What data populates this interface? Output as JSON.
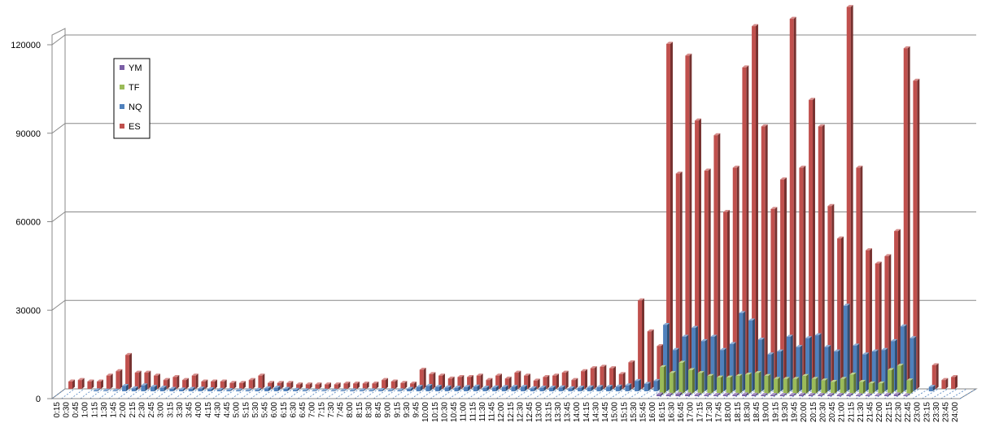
{
  "chart_data": {
    "type": "bar",
    "three_d": true,
    "grid": true,
    "legend_placement": "top-left",
    "title": "",
    "xlabel": "",
    "ylabel": "",
    "ylim": [
      0,
      120000
    ],
    "yticks": [
      "0",
      "30000",
      "60000",
      "90000",
      "120000"
    ],
    "categories": [
      "0:15",
      "0:30",
      "0:45",
      "1:00",
      "1:15",
      "1:30",
      "1:45",
      "2:00",
      "2:15",
      "2:30",
      "2:45",
      "3:00",
      "3:15",
      "3:30",
      "3:45",
      "4:00",
      "4:15",
      "4:30",
      "4:45",
      "5:00",
      "5:15",
      "5:30",
      "5:45",
      "6:00",
      "6:15",
      "6:30",
      "6:45",
      "7:00",
      "7:15",
      "7:30",
      "7:45",
      "8:00",
      "8:15",
      "8:30",
      "8:45",
      "9:00",
      "9:15",
      "9:30",
      "9:45",
      "10:00",
      "10:15",
      "10:30",
      "10:45",
      "11:00",
      "11:15",
      "11:30",
      "11:45",
      "12:00",
      "12:15",
      "12:30",
      "12:45",
      "13:00",
      "13:15",
      "13:30",
      "13:45",
      "14:00",
      "14:15",
      "14:30",
      "14:45",
      "15:00",
      "15:15",
      "15:30",
      "15:45",
      "16:00",
      "16:15",
      "16:30",
      "16:45",
      "17:00",
      "17:15",
      "17:30",
      "17:45",
      "18:00",
      "18:15",
      "18:30",
      "18:45",
      "19:00",
      "19:15",
      "19:30",
      "19:45",
      "20:00",
      "20:15",
      "20:30",
      "20:45",
      "21:00",
      "21:15",
      "21:30",
      "21:45",
      "22:00",
      "22:15",
      "22:30",
      "22:45",
      "23:00",
      "23:15",
      "23:30",
      "23:45",
      "24:00"
    ],
    "series": [
      {
        "name": "YM",
        "color": "#7b5fa6",
        "values": [
          0,
          0,
          0,
          0,
          0,
          0,
          0,
          0,
          0,
          0,
          0,
          0,
          0,
          0,
          0,
          0,
          0,
          0,
          0,
          0,
          0,
          0,
          0,
          0,
          0,
          0,
          0,
          0,
          0,
          0,
          0,
          0,
          0,
          0,
          0,
          0,
          0,
          0,
          0,
          0,
          0,
          0,
          0,
          0,
          0,
          0,
          0,
          0,
          0,
          0,
          0,
          0,
          0,
          0,
          0,
          0,
          0,
          0,
          0,
          0,
          0,
          0,
          0,
          600,
          500,
          700,
          600,
          500,
          400,
          400,
          500,
          500,
          600,
          500,
          400,
          400,
          400,
          400,
          500,
          400,
          400,
          400,
          400,
          400,
          300,
          300,
          300,
          500,
          600,
          300,
          0,
          0,
          0,
          0,
          0,
          0
        ]
      },
      {
        "name": "TF",
        "color": "#9bbb59",
        "values": [
          0,
          0,
          0,
          0,
          0,
          0,
          0,
          0,
          0,
          0,
          0,
          0,
          0,
          0,
          0,
          0,
          0,
          0,
          0,
          0,
          0,
          0,
          0,
          0,
          0,
          0,
          0,
          0,
          0,
          0,
          0,
          0,
          0,
          0,
          0,
          0,
          0,
          0,
          0,
          0,
          0,
          0,
          0,
          0,
          0,
          0,
          0,
          0,
          0,
          0,
          0,
          0,
          0,
          0,
          0,
          0,
          0,
          0,
          0,
          0,
          0,
          0,
          0,
          9000,
          7000,
          10500,
          8000,
          7000,
          6000,
          5500,
          5500,
          6000,
          6500,
          7000,
          6000,
          5000,
          5000,
          5000,
          6000,
          5000,
          4500,
          4000,
          5000,
          6500,
          4000,
          3500,
          3500,
          8000,
          9500,
          4500,
          0,
          0,
          0,
          0,
          0,
          0
        ]
      },
      {
        "name": "NQ",
        "color": "#4f81bd",
        "values": [
          0,
          0,
          0,
          300,
          200,
          200,
          1800,
          1000,
          2000,
          1500,
          1200,
          800,
          600,
          800,
          900,
          700,
          500,
          400,
          300,
          300,
          500,
          1000,
          1200,
          800,
          500,
          300,
          200,
          200,
          200,
          200,
          300,
          300,
          300,
          400,
          300,
          300,
          800,
          1500,
          1800,
          1500,
          1300,
          1200,
          1400,
          1600,
          1200,
          1300,
          1400,
          1500,
          1500,
          1000,
          1200,
          1200,
          1300,
          1000,
          1200,
          1300,
          1400,
          1500,
          1600,
          2000,
          3500,
          2500,
          3500,
          22500,
          14000,
          18500,
          21500,
          17000,
          18500,
          14000,
          16000,
          26500,
          24000,
          17500,
          12500,
          13500,
          18500,
          15000,
          18000,
          19000,
          15000,
          13500,
          29000,
          15500,
          12500,
          13500,
          14000,
          17000,
          22000,
          18000,
          0,
          1500,
          0,
          0,
          0,
          0
        ]
      },
      {
        "name": "ES",
        "color": "#c0504d",
        "values": [
          2500,
          3000,
          2500,
          2500,
          4500,
          6000,
          11500,
          5500,
          5500,
          4500,
          3000,
          4000,
          3000,
          4500,
          2500,
          2500,
          2500,
          2000,
          2000,
          3000,
          4500,
          2000,
          2000,
          2000,
          1500,
          1500,
          1500,
          1500,
          1500,
          1800,
          1800,
          1800,
          1800,
          3000,
          2500,
          2000,
          1800,
          6500,
          5000,
          4500,
          3500,
          4000,
          4000,
          4500,
          3000,
          4500,
          3500,
          5500,
          4500,
          2800,
          4000,
          4500,
          5500,
          3000,
          6000,
          7000,
          7500,
          7000,
          5000,
          9000,
          30000,
          19500,
          14500,
          117000,
          73000,
          113000,
          91000,
          74000,
          86000,
          60000,
          75000,
          109000,
          123000,
          89000,
          61000,
          71000,
          125500,
          75000,
          98000,
          89000,
          62000,
          51000,
          129500,
          75000,
          47000,
          42500,
          45000,
          53500,
          115500,
          104500,
          0,
          8000,
          3000,
          4000,
          0,
          0
        ]
      }
    ]
  }
}
